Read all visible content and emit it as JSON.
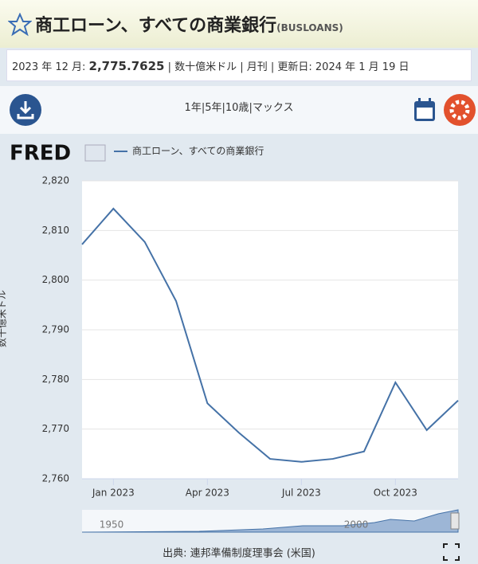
{
  "header": {
    "title": "商工ローン、すべての商業銀行",
    "series_id": "(BUSLOANS)"
  },
  "info": {
    "date": "2023 年 12 月:",
    "value": "2,775.7625",
    "details": "| 数十億米ドル | 月刊 | 更新日: 2024 年 1 月 19 日"
  },
  "ranges": [
    "1年",
    "5年",
    "10歳",
    "マックス"
  ],
  "logo": "FRED",
  "chart_data": {
    "type": "line",
    "ylabel": "数十億米ドル",
    "categories": [
      null,
      "Jan 2023",
      null,
      null,
      "Apr 2023",
      null,
      null,
      "Jul 2023",
      null,
      null,
      "Oct 2023",
      null,
      null
    ],
    "series": [
      {
        "name": "商工ローン、すべての商業銀行",
        "color": "#4572a7",
        "values": [
          2807.2,
          2814.4,
          2807.7,
          2795.8,
          2775.2,
          2769.3,
          2764.0,
          2763.4,
          2764.0,
          2765.5,
          2779.4,
          2769.8,
          2775.7625
        ]
      }
    ],
    "ylim": [
      2760,
      2820
    ],
    "yticks": [
      {
        "value": 2760,
        "label": "2,760"
      },
      {
        "value": 2770,
        "label": "2,770"
      },
      {
        "value": 2780,
        "label": "2,780"
      },
      {
        "value": 2790,
        "label": "2,790"
      },
      {
        "value": 2800,
        "label": "2,800"
      },
      {
        "value": 2810,
        "label": "2,810"
      },
      {
        "value": 2820,
        "label": "2,820"
      }
    ],
    "grid": true
  },
  "navigator": {
    "labels": [
      "1950",
      "2000"
    ]
  },
  "source": "出典: 連邦準備制度理事会 (米国)"
}
